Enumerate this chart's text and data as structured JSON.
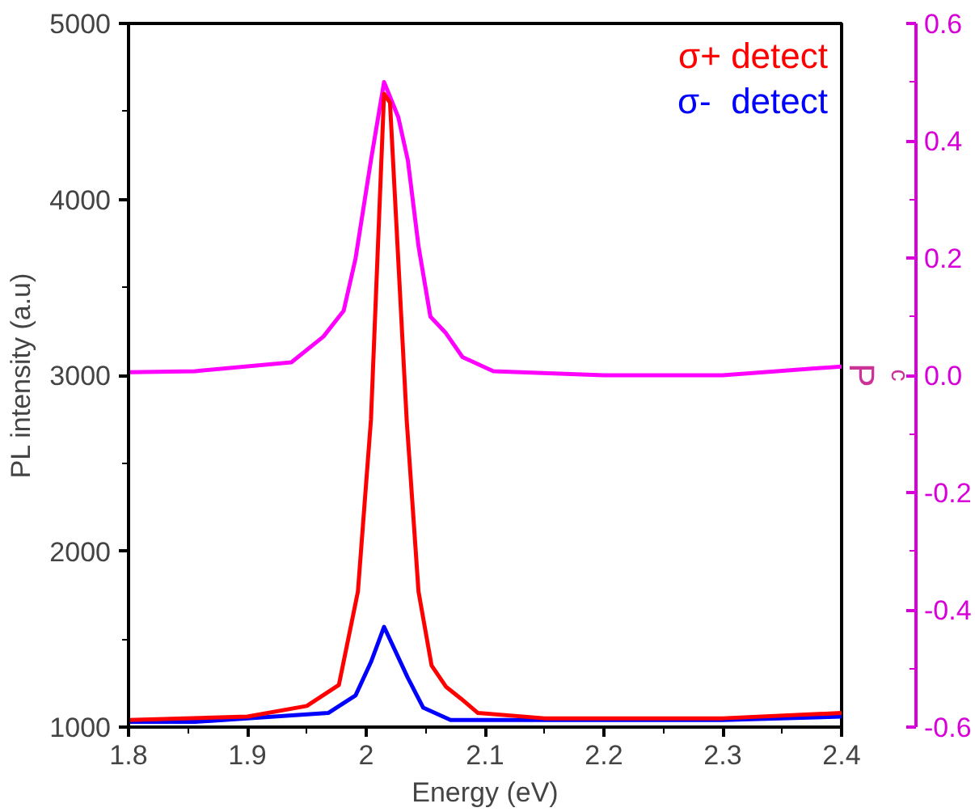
{
  "chart_data": {
    "type": "line",
    "xlabel": "Energy (eV)",
    "ylabel": "PL intensity (a.u)",
    "y2label": "P$_{c}$",
    "xlim": [
      1.8,
      2.4
    ],
    "xticks": [
      1.8,
      1.9,
      2.0,
      2.1,
      2.2,
      2.3,
      2.4
    ],
    "ylim": [
      1000,
      5000
    ],
    "yticks": [
      1000,
      2000,
      3000,
      4000,
      5000
    ],
    "y2lim": [
      -0.6,
      0.6
    ],
    "y2ticks": [
      {
        "value": -0.6,
        "label": "-0.6"
      },
      {
        "value": -0.4,
        "label": "-0.4"
      },
      {
        "value": -0.2,
        "label": "-0.2"
      },
      {
        "value": 0.0,
        "label": "0.0"
      },
      {
        "value": 0.2,
        "label": "0.2"
      },
      {
        "value": 0.4,
        "label": "0.4"
      },
      {
        "value": 0.6,
        "label": "0.6"
      }
    ],
    "grid": false,
    "legend": "top right",
    "marker": "none",
    "line_style": "solid",
    "series": [
      {
        "name": "σ+ detect",
        "color": "#ff0000",
        "x": [
          1.8,
          1.9,
          1.95,
          1.977,
          1.993,
          2.004,
          2.015,
          2.02,
          2.034,
          2.044,
          2.055,
          2.067,
          2.08,
          2.094,
          2.15,
          2.3,
          2.4
        ],
        "values": [
          1040,
          1060,
          1120,
          1240,
          1770,
          2750,
          4600,
          4550,
          2750,
          1770,
          1350,
          1230,
          1160,
          1080,
          1050,
          1050,
          1080
        ]
      },
      {
        "name": "σ-  detect",
        "color": "#0000ff",
        "x": [
          1.8,
          1.856,
          1.968,
          1.991,
          2.004,
          2.015,
          2.035,
          2.048,
          2.071,
          2.15,
          2.3,
          2.4
        ],
        "values": [
          1030,
          1030,
          1080,
          1180,
          1370,
          1570,
          1280,
          1110,
          1040,
          1040,
          1040,
          1060
        ]
      },
      {
        "color": "#ff00ff",
        "axis": "y2",
        "x": [
          1.8,
          1.856,
          1.937,
          1.964,
          1.981,
          1.991,
          2.004,
          2.015,
          2.027,
          2.035,
          2.044,
          2.054,
          2.067,
          2.081,
          2.107,
          2.2,
          2.3,
          2.4
        ],
        "values": [
          0.005,
          0.007,
          0.022,
          0.066,
          0.11,
          0.199,
          0.367,
          0.5,
          0.44,
          0.367,
          0.22,
          0.1,
          0.072,
          0.031,
          0.007,
          0.0,
          0.0,
          0.015
        ]
      }
    ]
  }
}
